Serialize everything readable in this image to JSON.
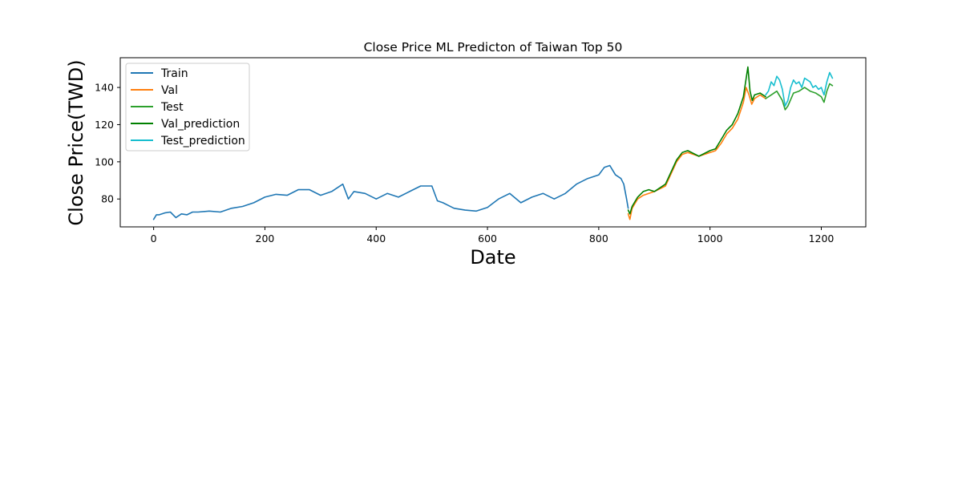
{
  "chart_data": {
    "type": "line",
    "title": "Close Price ML Predicton of Taiwan Top 50",
    "xlabel": "Date",
    "ylabel": "Close Price(TWD)",
    "xlim": [
      -60,
      1280
    ],
    "ylim": [
      65,
      156
    ],
    "x_ticks": [
      0,
      200,
      400,
      600,
      800,
      1000,
      1200
    ],
    "y_ticks": [
      80,
      100,
      120,
      140
    ],
    "grid": false,
    "legend_position": "top-left",
    "series": [
      {
        "name": "Train",
        "color": "#1f77b4",
        "x": [
          0,
          5,
          10,
          20,
          30,
          40,
          50,
          60,
          70,
          80,
          100,
          120,
          140,
          160,
          180,
          200,
          220,
          240,
          260,
          280,
          300,
          320,
          340,
          350,
          360,
          380,
          400,
          420,
          440,
          460,
          480,
          500,
          510,
          520,
          540,
          560,
          580,
          600,
          620,
          640,
          660,
          680,
          700,
          720,
          740,
          760,
          780,
          800,
          810,
          820,
          830,
          840,
          845,
          850,
          853
        ],
        "y": [
          69,
          71.5,
          71.5,
          72.5,
          73,
          70,
          72,
          71.5,
          73,
          73,
          73.5,
          73,
          75,
          76,
          78,
          81,
          82.5,
          82,
          85,
          85,
          82,
          84,
          88,
          80,
          84,
          83,
          80,
          83,
          81,
          84,
          87,
          87,
          79,
          78,
          75,
          74,
          73.5,
          75.5,
          80,
          83,
          78,
          81,
          83,
          80,
          83,
          88,
          91,
          93,
          97,
          98,
          93,
          91,
          88,
          80,
          75
        ]
      },
      {
        "name": "Val",
        "color": "#ff7f0e",
        "x": [
          853,
          856,
          860,
          870,
          880,
          900,
          920,
          940,
          950,
          960,
          980,
          1000,
          1010,
          1020,
          1030,
          1040,
          1050,
          1060,
          1065,
          1070,
          1075,
          1080,
          1090,
          1100
        ],
        "y": [
          72,
          69,
          75,
          80,
          82,
          84,
          87,
          100,
          104,
          105,
          103,
          105,
          106,
          110,
          115,
          118,
          123,
          132,
          140,
          136,
          131,
          134,
          136,
          134
        ]
      },
      {
        "name": "Test",
        "color": "#2ca02c",
        "x": [
          1100,
          1110,
          1120,
          1130,
          1135,
          1140,
          1150,
          1160,
          1170,
          1180,
          1190,
          1200,
          1205,
          1210,
          1215,
          1220
        ],
        "y": [
          134,
          136,
          138,
          133,
          128,
          130,
          137,
          138,
          140,
          138,
          137,
          135,
          132,
          138,
          142,
          141
        ]
      },
      {
        "name": "Val_prediction",
        "color": "#008000",
        "x": [
          853,
          856,
          860,
          870,
          880,
          890,
          900,
          920,
          940,
          950,
          960,
          980,
          1000,
          1010,
          1020,
          1030,
          1040,
          1050,
          1060,
          1065,
          1068,
          1072,
          1076,
          1080,
          1090,
          1100
        ],
        "y": [
          74,
          72,
          76,
          81,
          84,
          85,
          84,
          88,
          101,
          105,
          106,
          103,
          106,
          107,
          112,
          117,
          120,
          126,
          135,
          145,
          151,
          138,
          133,
          136,
          137,
          135
        ]
      },
      {
        "name": "Test_prediction",
        "color": "#17becf",
        "x": [
          1100,
          1105,
          1110,
          1115,
          1120,
          1125,
          1130,
          1135,
          1140,
          1145,
          1150,
          1155,
          1160,
          1165,
          1170,
          1175,
          1180,
          1185,
          1190,
          1195,
          1200,
          1205,
          1210,
          1215,
          1220
        ],
        "y": [
          136,
          138,
          143,
          141,
          146,
          144,
          139,
          130,
          133,
          140,
          144,
          142,
          143,
          140,
          145,
          144,
          143,
          140,
          141,
          139,
          140,
          136,
          143,
          148,
          145
        ]
      }
    ]
  }
}
